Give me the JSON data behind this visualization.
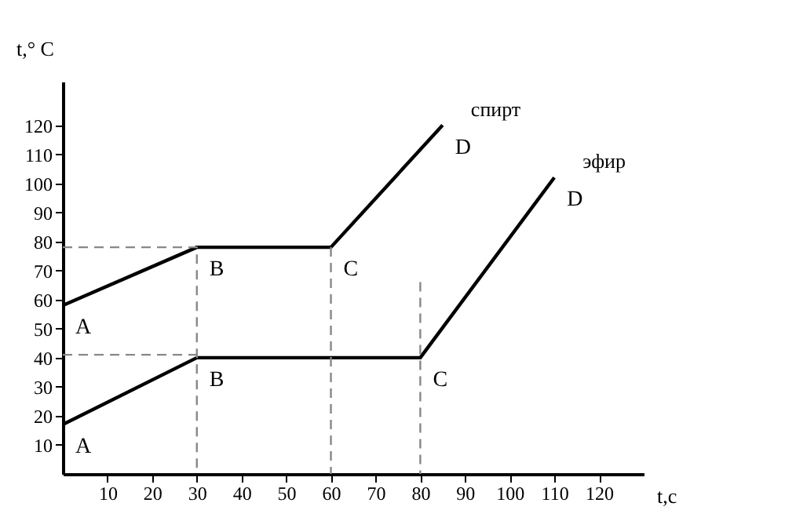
{
  "chart_data": {
    "type": "line",
    "xlabel": "t,c",
    "ylabel": "t,° C",
    "xlim": [
      0,
      130
    ],
    "ylim": [
      0,
      135
    ],
    "xticks": [
      10,
      20,
      30,
      40,
      50,
      60,
      70,
      80,
      90,
      100,
      110,
      120
    ],
    "yticks": [
      10,
      20,
      30,
      40,
      50,
      60,
      70,
      80,
      90,
      100,
      110,
      120
    ],
    "grid": false,
    "marker": "none",
    "line_style": "solid",
    "series": [
      {
        "name": "спирт",
        "color": "#000000",
        "x": [
          0,
          30,
          60,
          85
        ],
        "values": [
          58,
          78,
          78,
          120
        ]
      },
      {
        "name": "эфир",
        "color": "#000000",
        "x": [
          0,
          30,
          80,
          110
        ],
        "values": [
          17,
          40,
          40,
          102
        ]
      },
      {
        "color": "#888888",
        "line_style": "dashed",
        "x": [
          0,
          30,
          30
        ],
        "values": [
          78,
          78,
          0
        ]
      },
      {
        "color": "#888888",
        "line_style": "dashed",
        "x": [
          0,
          30
        ],
        "values": [
          41,
          41
        ]
      },
      {
        "color": "#888888",
        "line_style": "dashed",
        "x": [
          60,
          60
        ],
        "values": [
          78,
          0
        ]
      },
      {
        "color": "#888888",
        "line_style": "dashed",
        "x": [
          80,
          80
        ],
        "values": [
          66,
          0
        ]
      }
    ],
    "annotations": [
      {
        "text": "A",
        "x": 0,
        "y": 58
      },
      {
        "text": "B",
        "x": 30,
        "y": 78
      },
      {
        "text": "C",
        "x": 60,
        "y": 78
      },
      {
        "text": "D",
        "x": 85,
        "y": 120
      },
      {
        "text": "A",
        "x": 0,
        "y": 17
      },
      {
        "text": "B",
        "x": 30,
        "y": 40
      },
      {
        "text": "C",
        "x": 80,
        "y": 40
      },
      {
        "text": "D",
        "x": 110,
        "y": 102
      }
    ]
  }
}
